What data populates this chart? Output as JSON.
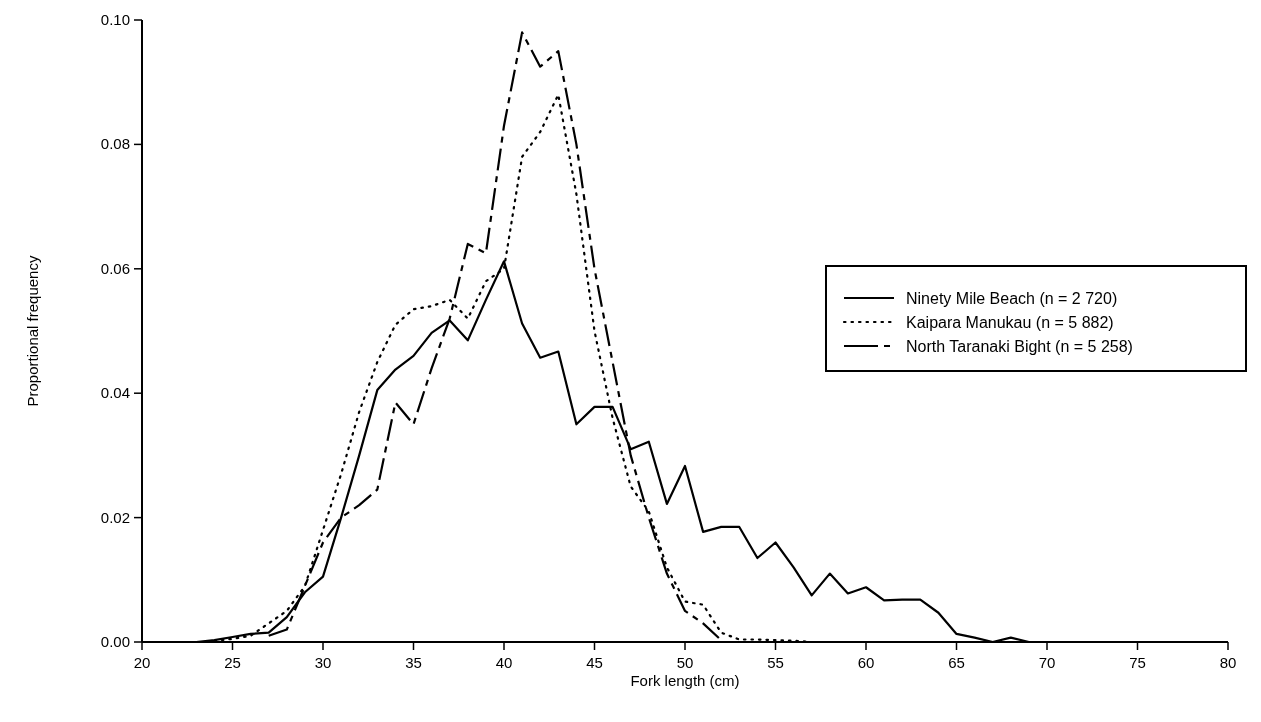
{
  "chart_data": {
    "type": "line",
    "xlabel": "Fork length (cm)",
    "ylabel": "Proportional frequency",
    "xlim": [
      20,
      80
    ],
    "xticks": [
      20,
      25,
      30,
      35,
      40,
      45,
      50,
      55,
      60,
      65,
      70,
      75,
      80
    ],
    "ylim": [
      0,
      0.1
    ],
    "yticks": [
      {
        "value": 0,
        "label": "0.00"
      },
      {
        "value": 0.02,
        "label": "0.02"
      },
      {
        "value": 0.04,
        "label": "0.04"
      },
      {
        "value": 0.06,
        "label": "0.06"
      },
      {
        "value": 0.08,
        "label": "0.08"
      },
      {
        "value": 0.1,
        "label": "0.10"
      }
    ],
    "legend": "right",
    "grid": false,
    "marker": "none",
    "series": [
      {
        "name": "Ninety Mile Beach (n = 2 720)",
        "color": "#000000",
        "line_style": "solid",
        "x": [
          22,
          23,
          24,
          25,
          26,
          27,
          28,
          29,
          30,
          31,
          32,
          33,
          34,
          35,
          36,
          37,
          38,
          39,
          40,
          41,
          42,
          43,
          44,
          45,
          46,
          47,
          48,
          49,
          50,
          51,
          52,
          53,
          54,
          55,
          56,
          57,
          58,
          59,
          60,
          61,
          62,
          63,
          64,
          65,
          66,
          67,
          68,
          69,
          70
        ],
        "values": [
          0,
          0,
          0.0003,
          0.0008,
          0.0013,
          0.0015,
          0.004,
          0.008,
          0.0105,
          0.02,
          0.03,
          0.0405,
          0.0438,
          0.046,
          0.0497,
          0.0517,
          0.0485,
          0.055,
          0.0612,
          0.0512,
          0.0457,
          0.0467,
          0.035,
          0.0378,
          0.0378,
          0.031,
          0.0322,
          0.0222,
          0.0283,
          0.0177,
          0.0185,
          0.0185,
          0.0135,
          0.016,
          0.012,
          0.0075,
          0.011,
          0.0078,
          0.0088,
          0.0067,
          0.0068,
          0.0068,
          0.0047,
          0.0013,
          0.0007,
          0,
          0.0007,
          0,
          0
        ]
      },
      {
        "name": "Kaipara Manukau (n = 5 882)",
        "color": "#000000",
        "line_style": "dotted",
        "x": [
          24,
          25,
          26,
          27,
          28,
          29,
          30,
          31,
          32,
          33,
          34,
          35,
          36,
          37,
          38,
          39,
          40,
          41,
          42,
          43,
          44,
          45,
          46,
          47,
          48,
          49,
          50,
          51,
          52,
          53,
          54,
          55,
          56,
          57
        ],
        "values": [
          0.0002,
          0.0005,
          0.001,
          0.003,
          0.005,
          0.009,
          0.018,
          0.027,
          0.037,
          0.045,
          0.051,
          0.0535,
          0.054,
          0.055,
          0.052,
          0.058,
          0.06,
          0.078,
          0.082,
          0.088,
          0.072,
          0.05,
          0.036,
          0.025,
          0.021,
          0.012,
          0.0065,
          0.006,
          0.0015,
          0.0004,
          0.0004,
          0.0003,
          0.0002,
          0
        ]
      },
      {
        "name": "North Taranaki Bight (n = 5 258)",
        "color": "#000000",
        "line_style": "dashed",
        "x": [
          27,
          28,
          29,
          30,
          31,
          32,
          33,
          34,
          35,
          36,
          37,
          38,
          39,
          40,
          41,
          42,
          43,
          44,
          45,
          46,
          47,
          48,
          49,
          50,
          51,
          52
        ],
        "values": [
          0.001,
          0.002,
          0.009,
          0.016,
          0.02,
          0.022,
          0.0245,
          0.0385,
          0.035,
          0.044,
          0.052,
          0.064,
          0.0625,
          0.083,
          0.098,
          0.0925,
          0.095,
          0.08,
          0.06,
          0.045,
          0.03,
          0.02,
          0.011,
          0.005,
          0.003,
          0.0003
        ]
      }
    ]
  }
}
